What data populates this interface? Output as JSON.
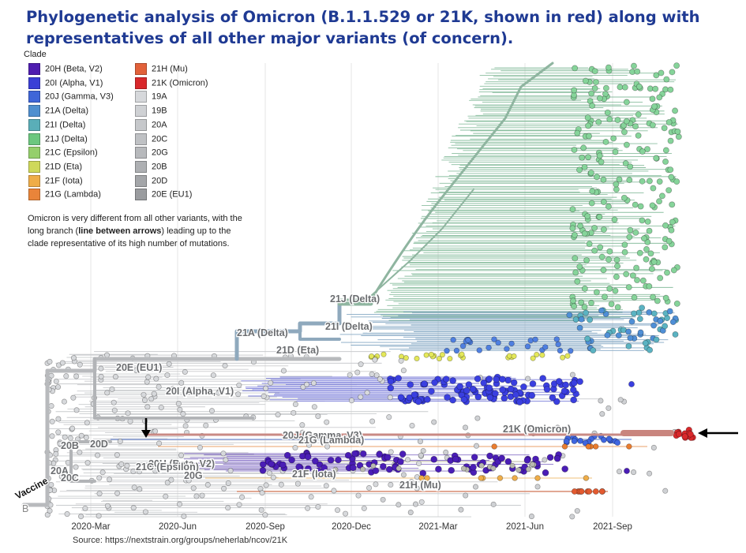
{
  "title": {
    "line1": "Phylogenetic analysis of Omicron (B.1.1.529 or 21K, shown in red) along with",
    "line2": "representatives of all other major variants (of concern)."
  },
  "legend": {
    "title": "Clade",
    "items": [
      {
        "label": "20H (Beta, V2)",
        "color": "#4f1db0"
      },
      {
        "label": "20I (Alpha, V1)",
        "color": "#3b3fd6"
      },
      {
        "label": "20J (Gamma, V3)",
        "color": "#3f66d8"
      },
      {
        "label": "21A (Delta)",
        "color": "#4f8fcf"
      },
      {
        "label": "21I (Delta)",
        "color": "#5aaeb8"
      },
      {
        "label": "21J (Delta)",
        "color": "#6cc77f"
      },
      {
        "label": "21C (Epsilon)",
        "color": "#95cf6b"
      },
      {
        "label": "21D (Eta)",
        "color": "#cfd85a"
      },
      {
        "label": "21F (Iota)",
        "color": "#efad48"
      },
      {
        "label": "21G (Lambda)",
        "color": "#e9843a"
      },
      {
        "label": "21H (Mu)",
        "color": "#e2613a"
      },
      {
        "label": "21K (Omicron)",
        "color": "#d9282b"
      },
      {
        "label": "19A",
        "color": "#d6d8db"
      },
      {
        "label": "19B",
        "color": "#cfd1d4"
      },
      {
        "label": "20A",
        "color": "#c6c8cb"
      },
      {
        "label": "20C",
        "color": "#bfc1c4"
      },
      {
        "label": "20G",
        "color": "#b7b9bc"
      },
      {
        "label": "20B",
        "color": "#aeb0b3"
      },
      {
        "label": "20D",
        "color": "#a4a6a9"
      },
      {
        "label": "20E (EU1)",
        "color": "#9a9c9f"
      }
    ]
  },
  "note": {
    "before": "Omicron is very different from all other variants, with the long branch (",
    "bold": "line between arrows",
    "after": ") leading up to the clade representative of its high number of mutations."
  },
  "clade_labels": [
    "21J (Delta)",
    "21I (Delta)",
    "21A (Delta)",
    "21D (Eta)",
    "20E (EU1)",
    "20I (Alpha, V1)",
    "21K (Omicron)",
    "20J (Gamma, V3)",
    "21G (Lambda)",
    "20B",
    "20D",
    "20H (Beta, V2)",
    "21C (Epsilon)",
    "20G",
    "20A",
    "20C",
    "21F (Iota)",
    "21H (Mu)",
    "Vaccine",
    "B"
  ],
  "x_axis": {
    "ticks": [
      "2020-Mar",
      "2020-Jun",
      "2020-Sep",
      "2020-Dec",
      "2021-Mar",
      "2021-Jun",
      "2021-Sep"
    ]
  },
  "source": "Source: https://nextstrain.org/groups/neherlab/ncov/21K",
  "colors": {
    "title": "#1f3a93",
    "branch_gray": "#aeb0b3",
    "omicron": "#d9282b",
    "delta_green": "#8cc9a0",
    "delta_blue": "#7b9fbf"
  }
}
